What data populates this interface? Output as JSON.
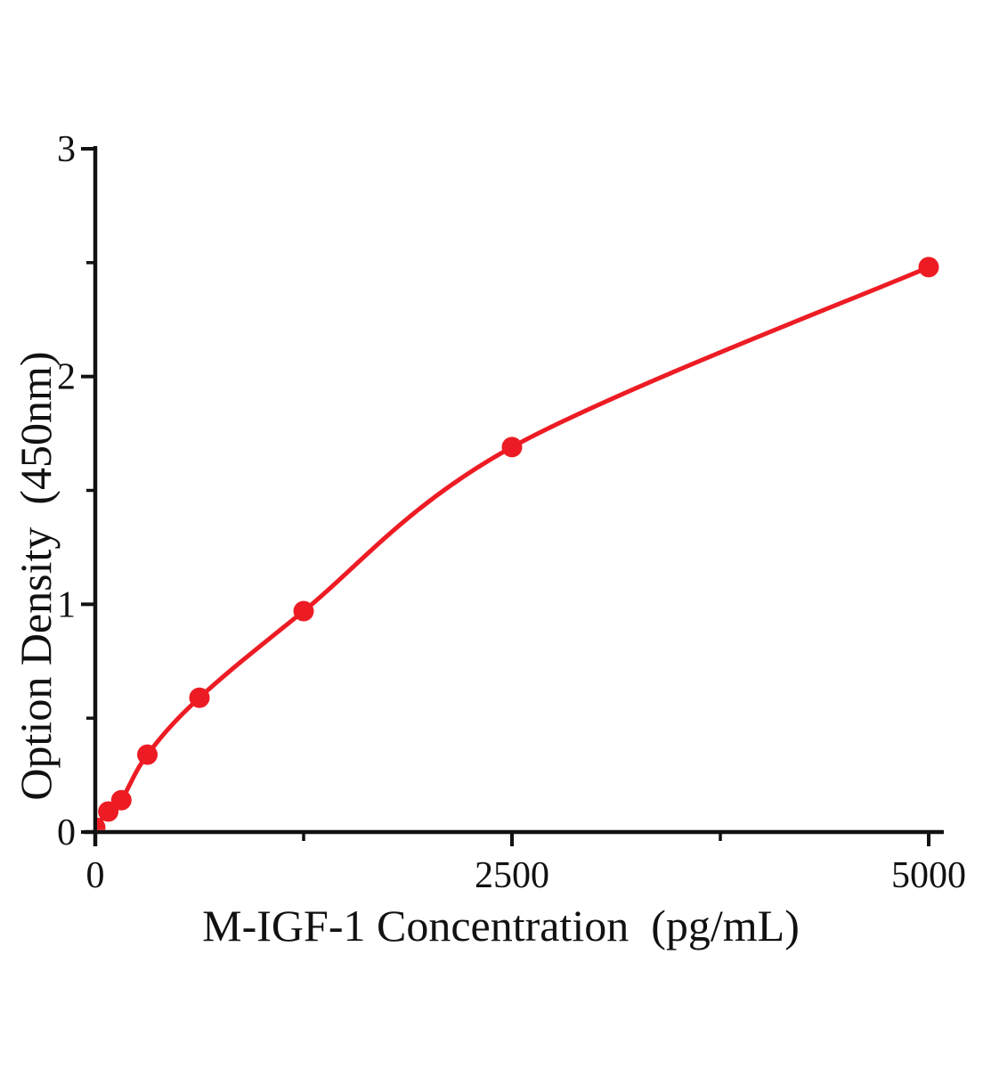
{
  "figure": {
    "background_color": "#ffffff",
    "title": ""
  },
  "chart_data": {
    "type": "scatter",
    "subtype": "standard-curve-with-smooth-fit-line",
    "title": "",
    "xlabel": "M-IGF-1 Concentration（pg/mL）",
    "ylabel": "Option Density（450nm）",
    "series": [
      {
        "name": "M-IGF-1 standard curve",
        "x": [
          0,
          78.125,
          156.25,
          312.5,
          625,
          1250,
          2500,
          5000
        ],
        "y": [
          0.02,
          0.09,
          0.14,
          0.34,
          0.59,
          0.97,
          1.69,
          2.48
        ],
        "marker": "filled-circle",
        "color": "#ed1c24",
        "line": "smooth-fit-curve"
      }
    ],
    "xlim": [
      0,
      5000
    ],
    "ylim": [
      0,
      3
    ],
    "x_major_ticks": [
      0,
      2500,
      5000
    ],
    "x_major_tick_labels": [
      "0",
      "2500",
      "5000"
    ],
    "x_minor_ticks": [
      1250,
      3750
    ],
    "y_major_ticks": [
      0,
      1,
      2,
      3
    ],
    "y_major_tick_labels": [
      "0",
      "1",
      "2",
      "3"
    ],
    "y_minor_ticks": [
      0.5,
      1.5,
      2.5
    ],
    "grid": false,
    "legend": false,
    "axis_color": "#111111",
    "tick_direction": "out"
  }
}
